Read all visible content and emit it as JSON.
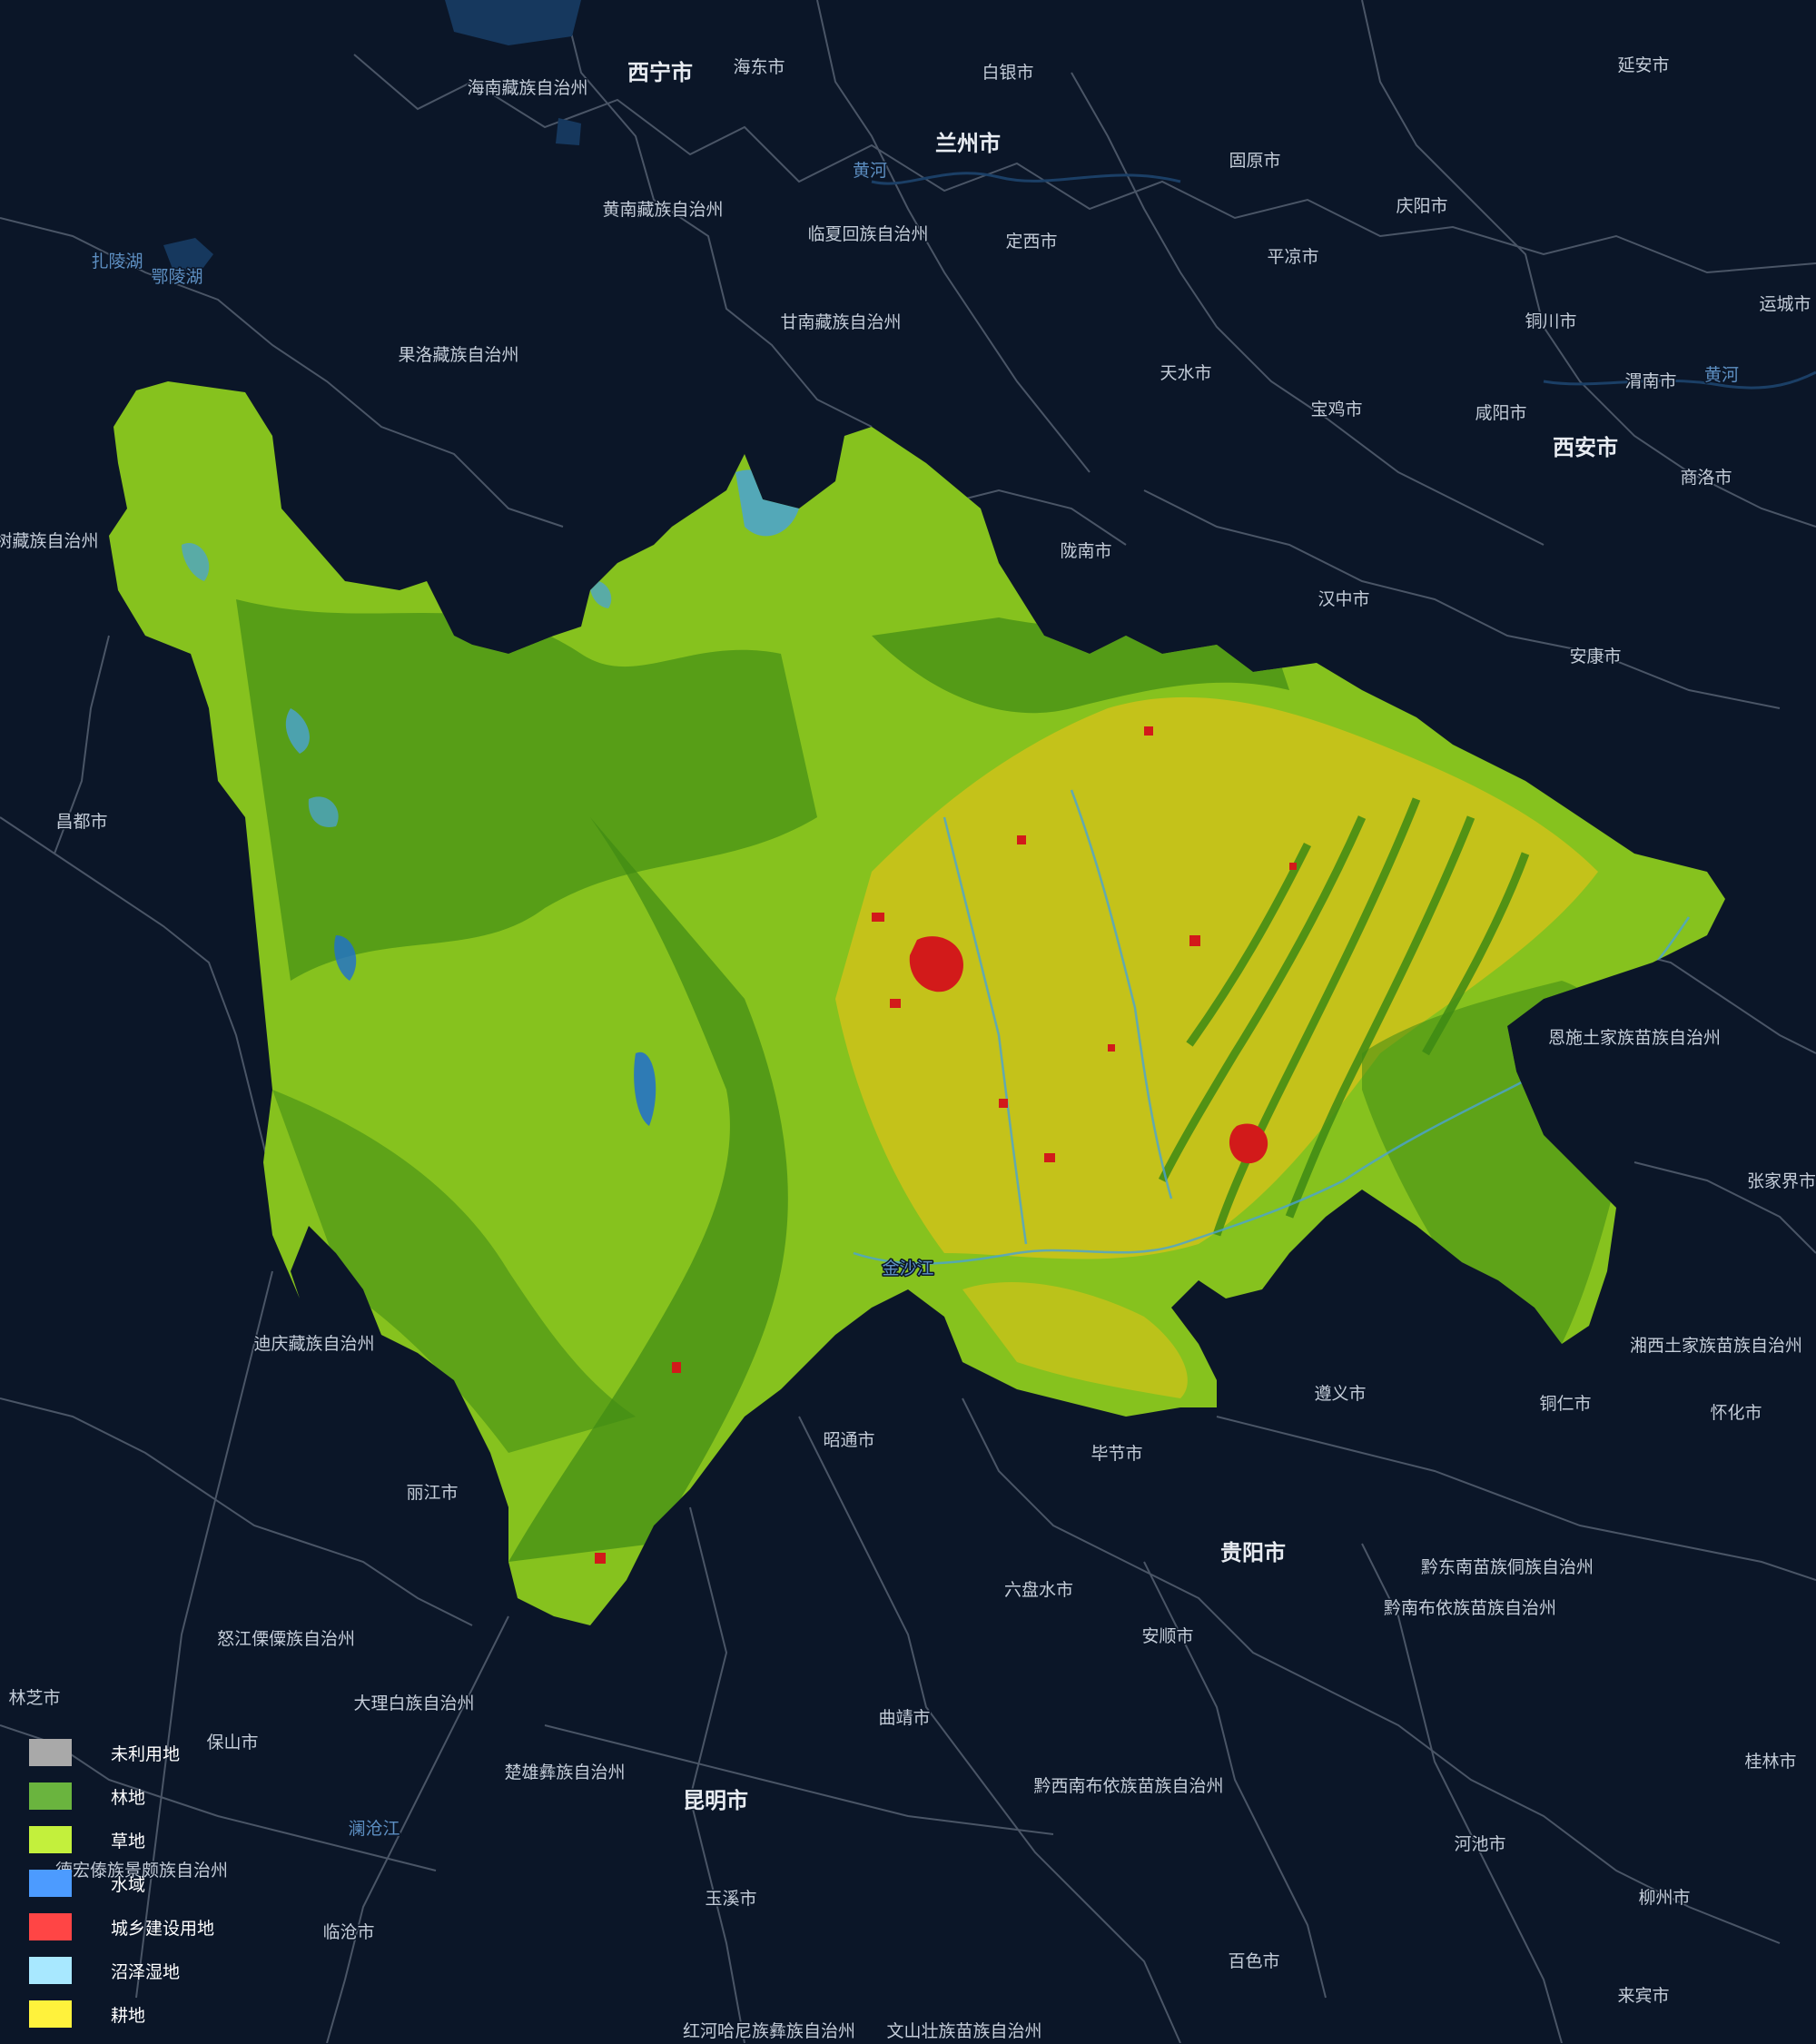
{
  "places": [
    {
      "name": "西宁市",
      "major": true
    },
    {
      "name": "海东市"
    },
    {
      "name": "白银市"
    },
    {
      "name": "兰州市",
      "major": true
    },
    {
      "name": "延安市"
    },
    {
      "name": "海南藏族自治州"
    },
    {
      "name": "黄河",
      "water": true
    },
    {
      "name": "固原市"
    },
    {
      "name": "庆阳市"
    },
    {
      "name": "黄南藏族自治州"
    },
    {
      "name": "临夏回族自治州"
    },
    {
      "name": "定西市"
    },
    {
      "name": "平凉市"
    },
    {
      "name": "扎陵湖",
      "water": true
    },
    {
      "name": "鄂陵湖",
      "water": true
    },
    {
      "name": "铜川市"
    },
    {
      "name": "运城市"
    },
    {
      "name": "甘南藏族自治州"
    },
    {
      "name": "果洛藏族自治州"
    },
    {
      "name": "天水市"
    },
    {
      "name": "渭南市"
    },
    {
      "name": "黄河",
      "water": true
    },
    {
      "name": "宝鸡市"
    },
    {
      "name": "咸阳市"
    },
    {
      "name": "西安市",
      "major": true
    },
    {
      "name": "商洛市"
    },
    {
      "name": "玉树藏族自治州"
    },
    {
      "name": "陇南市"
    },
    {
      "name": "汉中市"
    },
    {
      "name": "安康市"
    },
    {
      "name": "昌都市"
    },
    {
      "name": "恩施土家族苗族自治州"
    },
    {
      "name": "张家界市"
    },
    {
      "name": "迪庆藏族自治州"
    },
    {
      "name": "湘西土家族苗族自治州"
    },
    {
      "name": "遵义市"
    },
    {
      "name": "铜仁市"
    },
    {
      "name": "怀化市"
    },
    {
      "name": "昭通市"
    },
    {
      "name": "毕节市"
    },
    {
      "name": "丽江市"
    },
    {
      "name": "贵阳市",
      "major": true
    },
    {
      "name": "黔东南苗族侗族自治州"
    },
    {
      "name": "六盘水市"
    },
    {
      "name": "黔南布依族苗族自治州"
    },
    {
      "name": "怒江傈僳族自治州"
    },
    {
      "name": "安顺市"
    },
    {
      "name": "林芝市"
    },
    {
      "name": "大理白族自治州"
    },
    {
      "name": "曲靖市"
    },
    {
      "name": "保山市"
    },
    {
      "name": "怀化市"
    },
    {
      "name": "楚雄彝族自治州"
    },
    {
      "name": "黔西南布依族苗族自治州"
    },
    {
      "name": "桂林市"
    },
    {
      "name": "昆明市",
      "major": true
    },
    {
      "name": "澜沧江",
      "water": true
    },
    {
      "name": "德宏傣族景颇族自治州"
    },
    {
      "name": "河池市"
    },
    {
      "name": "玉溪市"
    },
    {
      "name": "柳州市"
    },
    {
      "name": "临沧市"
    },
    {
      "name": "百色市"
    },
    {
      "name": "来宾市"
    },
    {
      "name": "红河哈尼族彝族自治州"
    },
    {
      "name": "文山壮族苗族自治州"
    },
    {
      "name": "金沙江",
      "water": true
    }
  ],
  "legend": [
    {
      "label": "未利用地",
      "color": "#a9a9a9"
    },
    {
      "label": "林地",
      "color": "#6ab43e"
    },
    {
      "label": "草地",
      "color": "#c3f03c"
    },
    {
      "label": "水域",
      "color": "#4c9bff"
    },
    {
      "label": "城乡建设用地",
      "color": "#ff4545"
    },
    {
      "label": "沼泽湿地",
      "color": "#a8e8ff"
    },
    {
      "label": "耕地",
      "color": "#fff23c"
    }
  ],
  "colors": {
    "background": "#0b1628",
    "boundary": "#4a5566",
    "forest": "#3e8a14",
    "grass": "#86c21e",
    "cropland": "#c4c21a",
    "water": "#4aa3d4",
    "urban": "#d21a1a"
  }
}
